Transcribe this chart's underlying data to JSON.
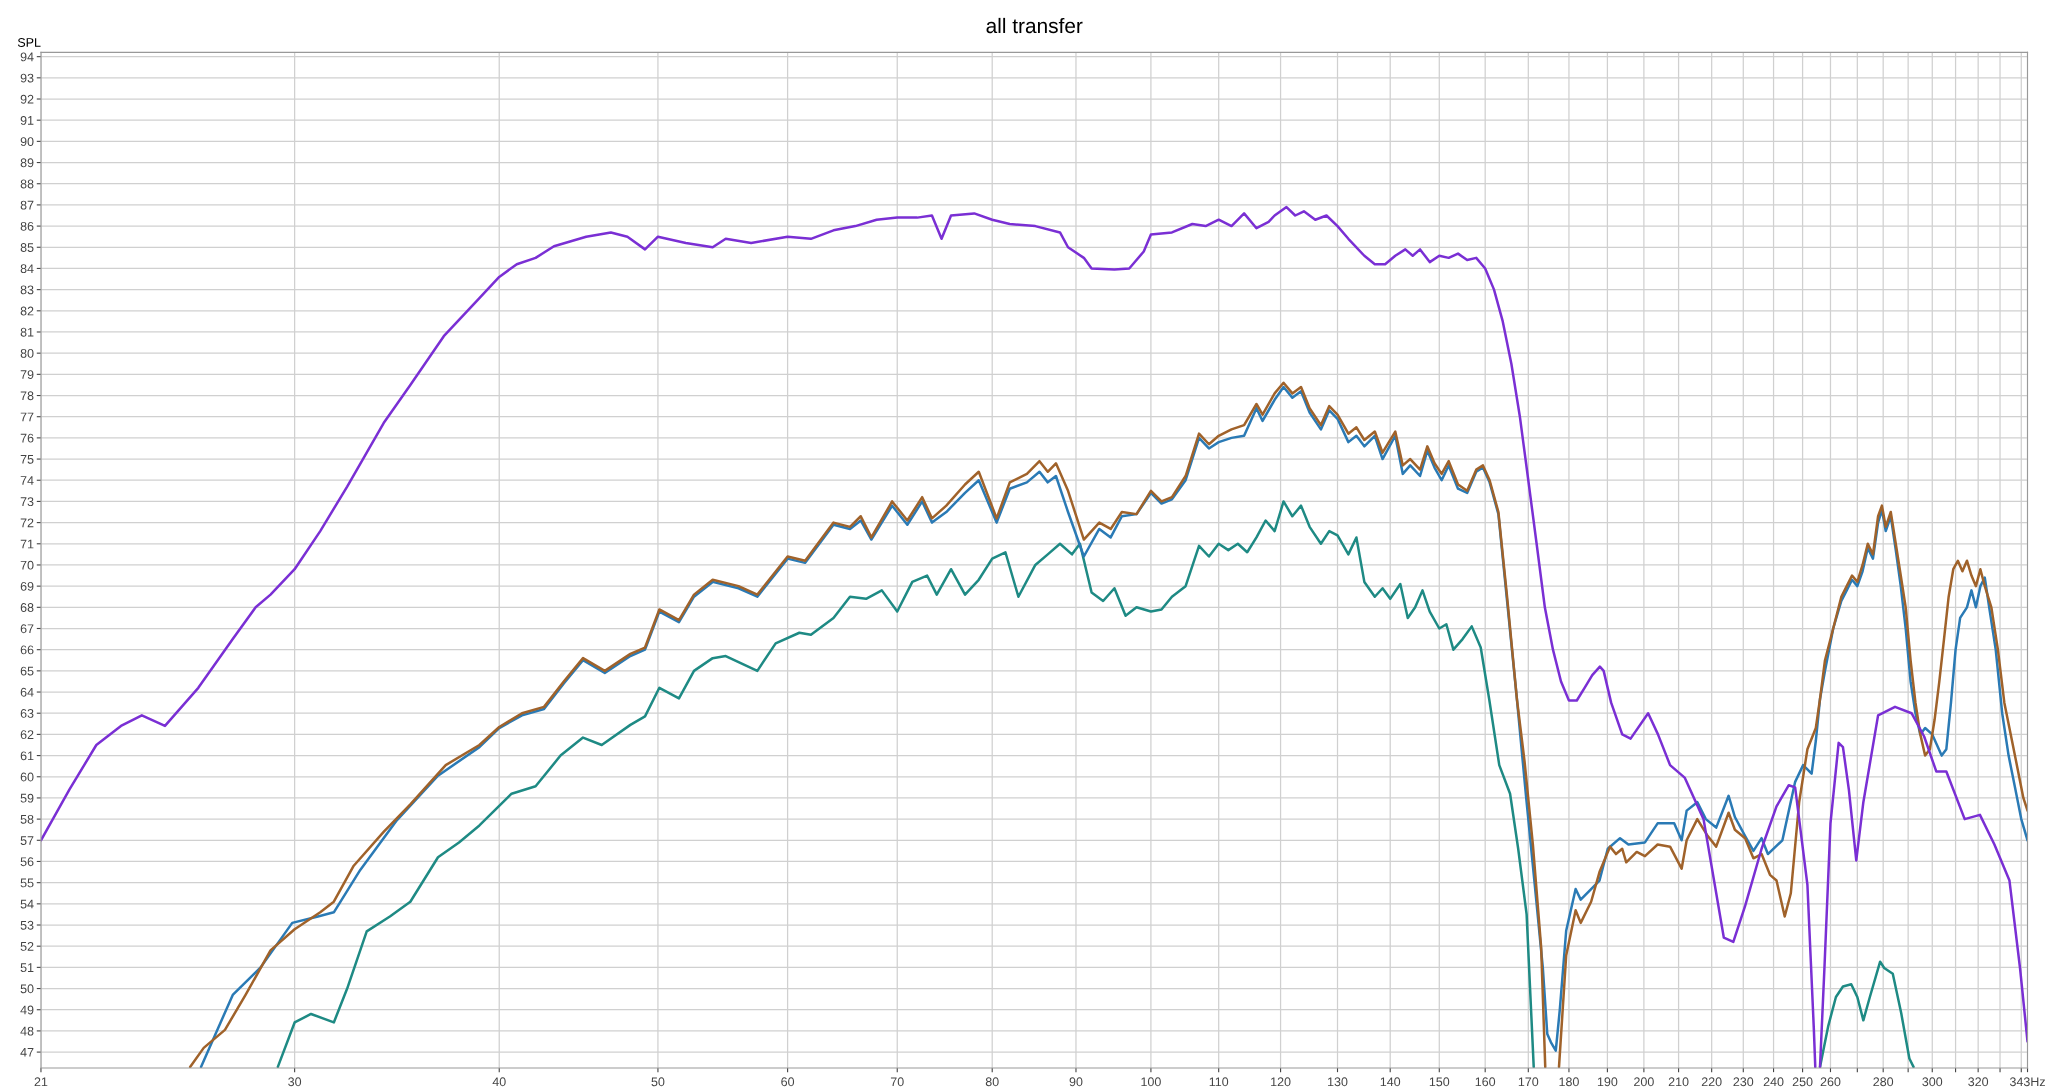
{
  "chart_data": {
    "type": "line",
    "title": "all transfer",
    "ylabel": "SPL",
    "log": "x",
    "grid": true,
    "xlim": [
      21,
      343
    ],
    "ylim": [
      46.25,
      94.2
    ],
    "xticks": [
      21,
      30,
      40,
      50,
      60,
      70,
      80,
      90,
      100,
      110,
      120,
      130,
      140,
      150,
      160,
      170,
      180,
      190,
      200,
      210,
      220,
      230,
      240,
      250,
      260,
      {
        "value": 270,
        "label": null
      },
      280,
      {
        "value": 290,
        "label": null
      },
      300,
      {
        "value": 310,
        "label": null
      },
      320,
      {
        "value": 330,
        "label": null
      },
      {
        "value": 340,
        "label": null
      },
      {
        "value": 343,
        "label": "343Hz"
      }
    ],
    "yticks": [
      47,
      48,
      49,
      50,
      51,
      52,
      53,
      54,
      55,
      56,
      57,
      58,
      59,
      60,
      61,
      62,
      63,
      64,
      65,
      66,
      67,
      68,
      69,
      70,
      71,
      72,
      73,
      74,
      75,
      76,
      77,
      78,
      79,
      80,
      81,
      82,
      83,
      84,
      85,
      86,
      87,
      88,
      89,
      90,
      91,
      92,
      93,
      94
    ],
    "series": [
      {
        "color": "#1e8a84",
        "x": [
          29.3,
          30,
          30.7,
          31.7,
          32.3,
          33.2,
          34.3,
          35.3,
          36.7,
          37.8,
          38.9,
          40.7,
          42.1,
          43.6,
          45.0,
          46.2,
          48.1,
          49.1,
          50.1,
          51.5,
          52.6,
          54,
          55,
          57.5,
          59,
          61,
          62,
          64,
          65.5,
          67,
          68.5,
          70,
          71.5,
          73,
          74,
          75.5,
          77,
          78.5,
          80,
          81.5,
          83,
          85,
          86.5,
          88,
          89.5,
          90.5,
          92,
          93.5,
          95,
          96.5,
          98,
          100,
          101.5,
          103,
          105,
          107,
          108.5,
          110,
          111.5,
          113,
          114.5,
          116,
          117.5,
          119,
          120.5,
          122,
          123.5,
          125,
          127,
          128.5,
          130,
          132,
          133.5,
          135,
          137,
          138.5,
          140,
          142,
          143.5,
          145,
          146.5,
          148,
          150,
          151.5,
          153,
          155,
          157,
          159,
          160.9,
          163.2,
          165.7,
          167.6,
          169.6,
          171.3,
          213,
          256.2,
          259.2,
          262,
          264.6,
          267.7,
          270,
          272.3,
          274.8,
          278.8,
          280.4,
          283.8,
          287.2,
          290.5,
          292.2
        ],
        "values": [
          46.3,
          48.4,
          48.8,
          48.4,
          50.0,
          52.7,
          53.4,
          54.1,
          56.2,
          56.9,
          57.7,
          59.2,
          59.55,
          61.0,
          61.85,
          61.5,
          62.45,
          62.85,
          64.2,
          63.7,
          65.0,
          65.6,
          65.7,
          65.0,
          66.3,
          66.8,
          66.7,
          67.5,
          68.5,
          68.4,
          68.8,
          67.8,
          69.2,
          69.5,
          68.6,
          69.8,
          68.6,
          69.3,
          70.3,
          70.6,
          68.5,
          70.0,
          70.5,
          71.0,
          70.5,
          71.0,
          68.7,
          68.3,
          68.9,
          67.6,
          68.0,
          67.8,
          67.9,
          68.5,
          69.0,
          70.9,
          70.4,
          71.0,
          70.7,
          71.0,
          70.6,
          71.3,
          72.1,
          71.6,
          73.0,
          72.3,
          72.8,
          71.8,
          71.0,
          71.6,
          71.4,
          70.5,
          71.3,
          69.2,
          68.5,
          68.9,
          68.4,
          69.1,
          67.5,
          68.0,
          68.8,
          67.8,
          67.0,
          67.2,
          66.0,
          66.5,
          67.1,
          66.1,
          63.67,
          60.55,
          59.2,
          56.6,
          53.5,
          46.3,
          null,
          46.3,
          48.24,
          49.6,
          50.1,
          50.2,
          49.6,
          48.5,
          49.6,
          51.27,
          50.97,
          50.7,
          48.83,
          46.7,
          46.3
        ]
      },
      {
        "color": "#2a7ab5",
        "x": [
          26.3,
          27.5,
          28.6,
          29.9,
          31.0,
          31.7,
          32.9,
          34.6,
          36.7,
          38.9,
          40,
          41.3,
          42.6,
          43.8,
          45.0,
          46.4,
          48.1,
          49.1,
          50.1,
          51.5,
          52.6,
          54,
          56,
          57.5,
          60,
          61.5,
          64,
          65.5,
          66.5,
          67.5,
          69.5,
          71,
          72.5,
          73.5,
          75,
          77,
          78.5,
          80.5,
          82,
          84,
          85.5,
          86.5,
          87.5,
          89,
          91,
          93,
          94.5,
          96,
          98,
          100,
          101.5,
          103,
          105,
          107,
          108.5,
          110,
          112,
          114,
          116,
          117,
          119,
          120.5,
          122,
          123.5,
          125,
          127,
          128.5,
          130,
          132,
          133.5,
          135,
          137,
          138.5,
          141,
          142.5,
          144,
          146,
          147.5,
          149,
          150.5,
          152,
          154,
          156,
          158,
          159.5,
          161,
          163,
          165,
          167.3,
          169.5,
          171.5,
          173.5,
          174.6,
          175.5,
          176.7,
          177.7,
          179.3,
          181.7,
          183,
          185.7,
          187.9,
          190.1,
          193.4,
          195.7,
          200.3,
          203.9,
          208.7,
          210.9,
          212.4,
          215.6,
          218.2,
          221.4,
          225.3,
          227.3,
          230.6,
          233.3,
          236,
          238.1,
          243,
          247.4,
          250.2,
          253.2,
          254.7,
          256.2,
          258,
          261,
          264,
          266,
          268,
          270,
          272,
          274,
          276,
          278,
          279.5,
          281,
          283,
          285,
          287,
          289,
          291,
          293,
          295,
          297,
          300,
          304,
          306,
          308,
          310,
          312,
          315,
          317,
          319,
          321,
          323,
          325,
          328,
          331,
          334,
          337,
          340,
          343
        ],
        "values": [
          46.3,
          49.7,
          51.0,
          53.1,
          53.4,
          53.6,
          55.6,
          57.9,
          60.05,
          61.4,
          62.3,
          62.9,
          63.2,
          64.4,
          65.5,
          64.9,
          65.7,
          66.0,
          67.8,
          67.3,
          68.5,
          69.2,
          68.9,
          68.5,
          70.3,
          70.1,
          71.9,
          71.7,
          72.1,
          71.2,
          72.8,
          71.9,
          73.0,
          72.0,
          72.5,
          73.4,
          74.0,
          72.0,
          73.6,
          73.9,
          74.4,
          73.9,
          74.2,
          72.5,
          70.4,
          71.7,
          71.3,
          72.3,
          72.4,
          73.4,
          72.9,
          73.1,
          74.0,
          76.0,
          75.5,
          75.8,
          76.0,
          76.1,
          77.4,
          76.8,
          77.8,
          78.4,
          77.9,
          78.2,
          77.2,
          76.4,
          77.3,
          76.9,
          75.8,
          76.1,
          75.6,
          76.1,
          75.0,
          76.1,
          74.3,
          74.7,
          74.2,
          75.4,
          74.6,
          74.0,
          74.7,
          73.6,
          73.4,
          74.4,
          74.6,
          73.9,
          72.4,
          68.3,
          63.67,
          59.0,
          55.0,
          51.0,
          47.85,
          47.46,
          47.07,
          49.0,
          52.73,
          54.7,
          54.2,
          54.7,
          55.1,
          56.6,
          57.1,
          56.8,
          56.9,
          57.8,
          57.8,
          57.0,
          58.4,
          58.8,
          58.0,
          57.6,
          59.1,
          58.1,
          57.2,
          56.5,
          57.1,
          56.35,
          57.0,
          59.76,
          60.55,
          60.15,
          61.7,
          63.67,
          65.0,
          67.0,
          68.3,
          68.8,
          69.3,
          69.0,
          69.7,
          70.8,
          70.3,
          72.0,
          72.6,
          71.6,
          72.3,
          70.7,
          69.0,
          67.0,
          64.5,
          63.0,
          62.0,
          62.3,
          62.0,
          61.0,
          61.3,
          63.5,
          66.0,
          67.5,
          68.0,
          68.8,
          68.0,
          69.0,
          69.4,
          68.0,
          66.0,
          63.0,
          61.0,
          59.5,
          58.0,
          57.0
        ]
      },
      {
        "color": "#a0622a",
        "x": [
          25.9,
          26.4,
          27.2,
          28.0,
          29.0,
          30,
          31.1,
          31.7,
          32.6,
          34.0,
          35.3,
          37.1,
          38.9,
          40,
          41.3,
          42.6,
          43.8,
          45.0,
          46.4,
          48.1,
          49.1,
          50.1,
          51.5,
          52.6,
          54,
          56,
          57.5,
          60,
          61.5,
          64,
          65.5,
          66.5,
          67.5,
          69.5,
          71,
          72.5,
          73.5,
          75,
          77,
          78.5,
          80.5,
          82,
          84,
          85.5,
          86.5,
          87.5,
          89,
          91,
          93,
          94.5,
          96,
          98,
          100,
          101.5,
          103,
          105,
          107,
          108.5,
          110,
          112,
          114,
          116,
          117,
          119,
          120.5,
          122,
          123.5,
          125,
          127,
          128.5,
          130,
          132,
          133.5,
          135,
          137,
          138.5,
          141,
          142.5,
          144,
          146,
          147.5,
          149,
          150.5,
          152,
          154,
          156,
          158,
          159.5,
          161,
          163,
          165,
          167.3,
          169.1,
          171.1,
          173.1,
          174.1,
          176,
          177.5,
          179.3,
          181.7,
          183.0,
          185.7,
          187.9,
          190.7,
          192.3,
          194.0,
          195.1,
          198,
          200.3,
          203.9,
          207.5,
          210.9,
          212.4,
          215.6,
          218.8,
          221.4,
          225.3,
          227.3,
          230.6,
          233.3,
          236,
          238.8,
          241,
          243.8,
          245.9,
          248.8,
          251.7,
          254.7,
          256.2,
          258,
          261,
          264,
          266,
          268,
          270,
          272,
          274,
          276,
          278,
          279.5,
          281,
          283,
          285,
          287,
          289,
          291,
          293,
          295,
          297,
          299,
          301,
          303,
          305,
          307,
          309,
          311,
          313,
          315,
          317,
          319,
          321,
          323,
          326,
          329,
          332,
          335,
          338,
          341,
          343
        ],
        "values": [
          46.3,
          47.2,
          48.05,
          49.7,
          51.8,
          52.8,
          53.6,
          54.1,
          55.8,
          57.4,
          58.7,
          60.55,
          61.5,
          62.35,
          63.0,
          63.3,
          64.5,
          65.6,
          65.0,
          65.8,
          66.1,
          67.9,
          67.4,
          68.6,
          69.3,
          69.0,
          68.6,
          70.4,
          70.2,
          72.0,
          71.8,
          72.3,
          71.3,
          73.0,
          72.1,
          73.2,
          72.2,
          72.8,
          73.8,
          74.4,
          72.2,
          73.9,
          74.3,
          74.9,
          74.4,
          74.8,
          73.5,
          71.2,
          72.0,
          71.7,
          72.5,
          72.4,
          73.5,
          73.0,
          73.2,
          74.2,
          76.2,
          75.7,
          76.1,
          76.4,
          76.6,
          77.6,
          77.1,
          78.1,
          78.6,
          78.1,
          78.4,
          77.4,
          76.6,
          77.5,
          77.1,
          76.2,
          76.5,
          75.9,
          76.3,
          75.3,
          76.3,
          74.7,
          75.0,
          74.5,
          75.6,
          74.8,
          74.3,
          74.9,
          73.8,
          73.5,
          74.5,
          74.7,
          74.0,
          72.5,
          68.5,
          63.67,
          60.74,
          56.8,
          51.95,
          46.3,
          null,
          46.3,
          51.56,
          53.7,
          53.1,
          54.1,
          55.5,
          56.7,
          56.35,
          56.6,
          55.96,
          56.45,
          56.25,
          56.8,
          56.7,
          55.66,
          57.0,
          58.0,
          57.2,
          56.7,
          58.3,
          57.5,
          57.1,
          56.15,
          56.35,
          55.37,
          55.1,
          53.4,
          54.5,
          58.8,
          61.3,
          62.3,
          63.67,
          65.5,
          67.0,
          68.5,
          69.0,
          69.5,
          69.2,
          70.0,
          71.0,
          70.5,
          72.3,
          72.8,
          71.8,
          72.5,
          71.0,
          69.5,
          68.0,
          65.5,
          63.5,
          62.0,
          61.0,
          61.3,
          62.7,
          64.5,
          66.5,
          68.5,
          69.8,
          70.2,
          69.7,
          70.2,
          69.5,
          69.0,
          69.8,
          69.0,
          68.0,
          66.0,
          63.5,
          62.0,
          60.5,
          59.0,
          58.4
        ]
      },
      {
        "color": "#7a2fd4",
        "x": [
          21,
          21.86,
          22.7,
          23.5,
          24.2,
          25.0,
          26.2,
          27.5,
          28.4,
          29.0,
          30,
          31.1,
          32.3,
          34.0,
          35.3,
          37.0,
          38.9,
          40,
          41.0,
          42.1,
          43.2,
          45.2,
          46.8,
          47.9,
          49.1,
          50,
          52,
          54,
          55,
          57,
          60,
          62,
          64,
          66,
          68,
          70,
          72,
          73.5,
          74.5,
          75.5,
          78,
          80,
          82,
          85,
          88,
          89,
          91,
          92,
          95,
          97,
          99,
          100,
          103,
          106,
          108,
          110,
          112,
          114,
          116,
          118,
          119,
          121,
          122.5,
          124,
          126,
          128,
          130,
          132,
          135,
          137,
          139,
          141,
          143,
          144.5,
          146,
          148,
          150,
          152,
          154,
          156,
          158,
          160,
          162,
          164,
          166,
          168,
          170,
          172,
          174,
          176,
          178,
          180,
          182,
          184,
          186,
          188,
          189,
          191,
          194,
          196.3,
          201.2,
          204,
          207.5,
          211.8,
          217.5,
          223.8,
          226.8,
          230.6,
          236,
          241,
          245.2,
          247.4,
          251.7,
          254,
          254.5,
          255.3,
          256.2,
          257.8,
          260,
          263,
          264.6,
          266.8,
          269.6,
          272.3,
          278,
          284.7,
          291.4,
          296.6,
          301.7,
          306,
          314,
          320.8,
          327.4,
          334.4,
          339.4,
          343
        ],
        "values": [
          57.0,
          59.4,
          61.5,
          62.4,
          62.9,
          62.4,
          64.2,
          66.5,
          68.0,
          68.6,
          69.8,
          71.6,
          73.7,
          76.7,
          78.5,
          80.8,
          82.6,
          83.6,
          84.2,
          84.5,
          85.05,
          85.5,
          85.7,
          85.5,
          84.9,
          85.5,
          85.2,
          85.0,
          85.4,
          85.2,
          85.5,
          85.4,
          85.8,
          86.0,
          86.3,
          86.4,
          86.4,
          86.5,
          85.4,
          86.5,
          86.6,
          86.3,
          86.1,
          86.0,
          85.7,
          85.0,
          84.5,
          84.0,
          83.95,
          84.0,
          84.8,
          85.6,
          85.7,
          86.1,
          86.0,
          86.3,
          86.0,
          86.6,
          85.9,
          86.2,
          86.5,
          86.9,
          86.5,
          86.7,
          86.3,
          86.5,
          86.0,
          85.4,
          84.6,
          84.2,
          84.2,
          84.6,
          84.9,
          84.6,
          84.9,
          84.3,
          84.6,
          84.5,
          84.7,
          84.4,
          84.5,
          84.0,
          83.0,
          81.5,
          79.5,
          77.0,
          74.0,
          71.0,
          68.0,
          66.0,
          64.5,
          63.6,
          63.6,
          64.2,
          64.8,
          65.2,
          65.0,
          63.5,
          62.0,
          61.8,
          63.0,
          62.0,
          60.55,
          59.96,
          58.0,
          52.4,
          52.2,
          53.9,
          56.6,
          58.6,
          59.6,
          59.5,
          54.9,
          48.05,
          46.3,
          null,
          46.3,
          50.97,
          57.8,
          61.6,
          61.4,
          59.4,
          56.05,
          58.8,
          62.9,
          63.3,
          63.0,
          61.9,
          60.25,
          60.25,
          58.0,
          58.2,
          56.8,
          55.1,
          50.97,
          47.5
        ]
      }
    ]
  }
}
